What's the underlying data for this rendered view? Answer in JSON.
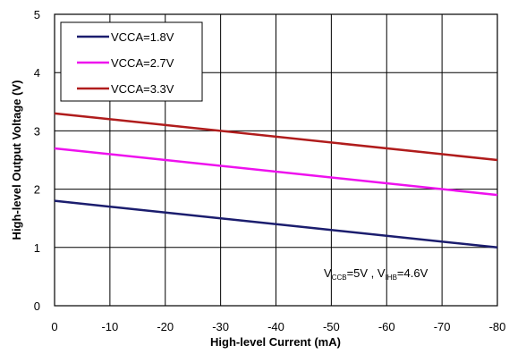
{
  "chart_data": {
    "type": "line",
    "xlabel": "High-level  Current (mA)",
    "ylabel": "High-level Output Voltage (V)",
    "xlim": [
      0,
      -80
    ],
    "ylim": [
      0,
      5
    ],
    "x_ticks": [
      0,
      -10,
      -20,
      -30,
      -40,
      -50,
      -60,
      -70,
      -80
    ],
    "y_ticks": [
      0,
      1,
      2,
      3,
      4,
      5
    ],
    "grid": true,
    "legend_position": "top-left",
    "series": [
      {
        "name": "VCCA=1.8V",
        "color": "#1b1d6e",
        "x": [
          0,
          -80
        ],
        "y": [
          1.8,
          1.0
        ]
      },
      {
        "name": "VCCA=2.7V",
        "color": "#ee11ee",
        "x": [
          0,
          -80
        ],
        "y": [
          2.7,
          1.9
        ]
      },
      {
        "name": "VCCA=3.3V",
        "color": "#b01c1c",
        "x": [
          0,
          -80
        ],
        "y": [
          3.3,
          2.5
        ]
      }
    ],
    "annotation": {
      "v_main": "V",
      "ccb_sub": "CCB",
      "ccb_value": "=5V , ",
      "ihb_main": "V",
      "ihb_sub": "IHB",
      "ihb_value": "=4.6V"
    }
  }
}
